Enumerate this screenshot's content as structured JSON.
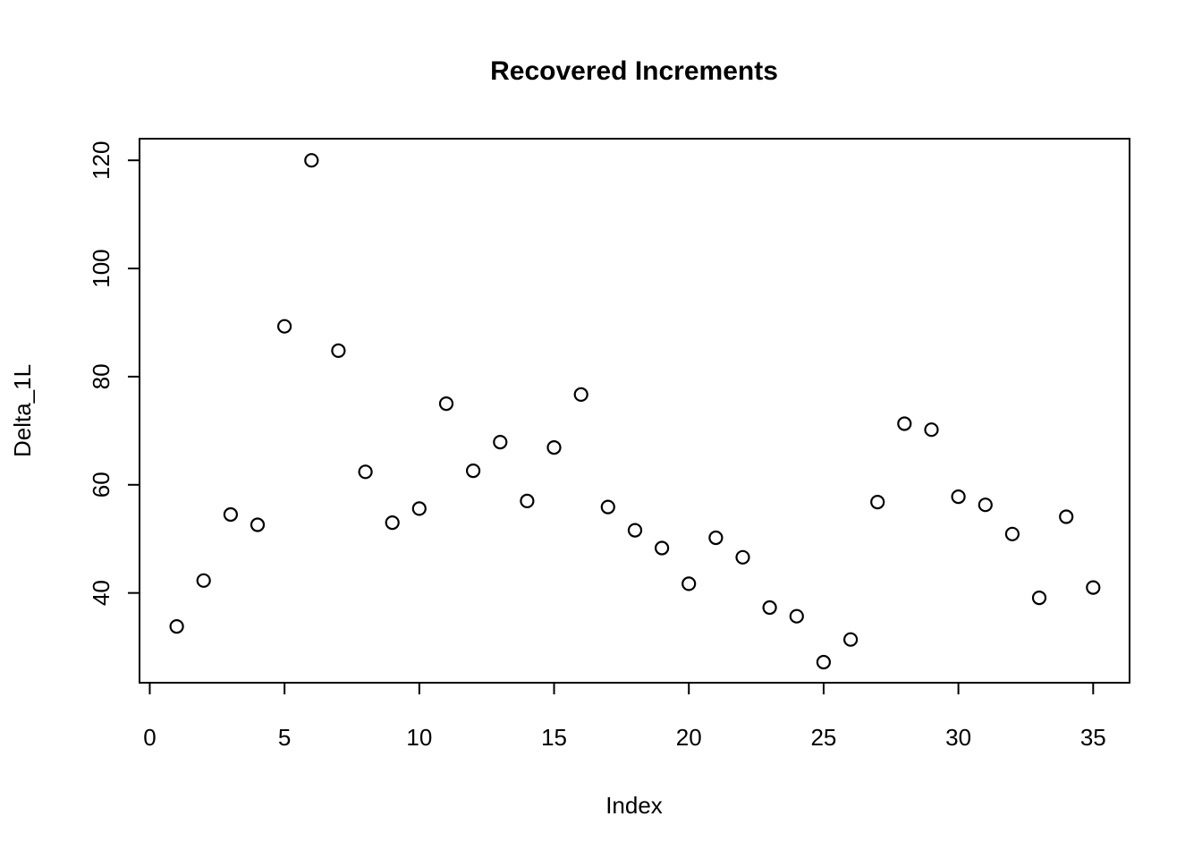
{
  "chart_data": {
    "type": "scatter",
    "title": "Recovered Increments",
    "xlabel": "Index",
    "ylabel": "Delta_1L",
    "x": [
      1,
      2,
      3,
      4,
      5,
      6,
      7,
      8,
      9,
      10,
      11,
      12,
      13,
      14,
      15,
      16,
      17,
      18,
      19,
      20,
      21,
      22,
      23,
      24,
      25,
      26,
      27,
      28,
      29,
      30,
      31,
      32,
      33,
      34,
      35
    ],
    "y": [
      33.8,
      42.3,
      54.5,
      52.6,
      89.3,
      120,
      84.8,
      62.4,
      53.0,
      55.6,
      75.0,
      62.6,
      67.9,
      57.0,
      66.9,
      76.7,
      55.9,
      51.6,
      48.3,
      41.7,
      50.2,
      46.6,
      37.3,
      35.7,
      27.2,
      31.4,
      56.8,
      71.3,
      70.2,
      57.8,
      56.3,
      50.9,
      39.1,
      54.1,
      41.0
    ],
    "xticks": [
      0,
      5,
      10,
      15,
      20,
      25,
      30,
      35
    ],
    "yticks": [
      40,
      60,
      80,
      100,
      120
    ],
    "xlim": [
      -0.38,
      36.35
    ],
    "ylim": [
      23.4,
      124.0
    ],
    "grid": false,
    "legend": "none",
    "marker": "open-circle",
    "marker_color": "#000000",
    "background_color": "#ffffff"
  }
}
